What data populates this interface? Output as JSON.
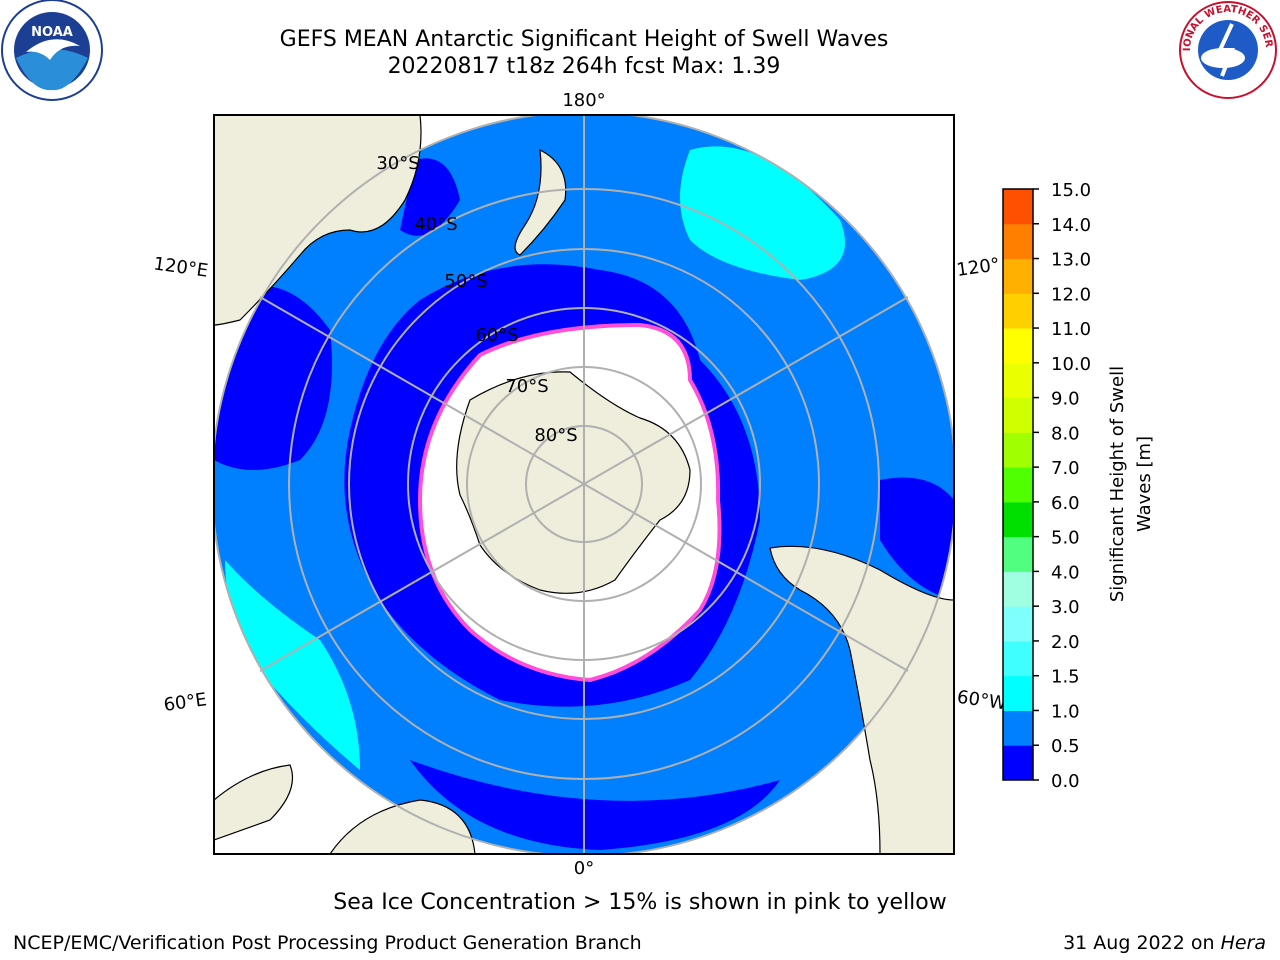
{
  "title": {
    "line1": "GEFS MEAN Antarctic Significant Height of Swell Waves",
    "line2": "20220817 t18z 264h fcst   Max: 1.39"
  },
  "map": {
    "projection": "south-polar-stereographic",
    "longitude_labels": {
      "top": "180°",
      "bottom": "0°",
      "upper_left": "120°E",
      "lower_left": "60°E",
      "upper_right": "120°",
      "lower_right": "60°W"
    },
    "latitude_labels": [
      "30°S",
      "40°S",
      "50°S",
      "60°S",
      "70°S",
      "80°S"
    ],
    "colors": {
      "land": "#efeedc",
      "ice": "#ffffff",
      "grid": "#b0b0b0",
      "ice_edge": "#ff4fd8"
    }
  },
  "colorbar": {
    "label": "Significant Height of Swell Waves [m]",
    "label_line1": "Significant Height of Swell",
    "label_line2": "Waves [m]",
    "ticks": [
      "0.0",
      "0.5",
      "1.0",
      "1.5",
      "2.0",
      "3.0",
      "4.0",
      "5.0",
      "6.0",
      "7.0",
      "8.0",
      "9.0",
      "10.0",
      "11.0",
      "12.0",
      "13.0",
      "14.0",
      "15.0"
    ],
    "colors": [
      "#0000ff",
      "#0080ff",
      "#00ffff",
      "#40ffff",
      "#80ffff",
      "#a0ffe0",
      "#50ff80",
      "#00e000",
      "#50ff00",
      "#a0ff00",
      "#d0ff00",
      "#eaff00",
      "#ffff00",
      "#ffd000",
      "#ffb000",
      "#ff8000",
      "#ff5000",
      "#ff2000",
      "#ff0000"
    ]
  },
  "chart_data": {
    "type": "heatmap",
    "title": "GEFS MEAN Antarctic Significant Height of Swell Waves",
    "subtitle": "20220817 t18z 264h fcst   Max: 1.39",
    "variable": "Significant Height of Swell Waves [m]",
    "colorbar_bounds": [
      0.0,
      0.5,
      1.0,
      1.5,
      2.0,
      3.0,
      4.0,
      5.0,
      6.0,
      7.0,
      8.0,
      9.0,
      10.0,
      11.0,
      12.0,
      13.0,
      14.0,
      15.0
    ],
    "max": 1.39
  },
  "notes": {
    "bottom": "Sea Ice Concentration > 15% is shown in pink to yellow",
    "footer_left": "NCEP/EMC/Verification Post Processing Product Generation Branch",
    "footer_date": "31 Aug 2022 on ",
    "footer_host": "Hera"
  },
  "logos": {
    "left": "NOAA",
    "right": "NATIONAL WEATHER SERVICE"
  }
}
